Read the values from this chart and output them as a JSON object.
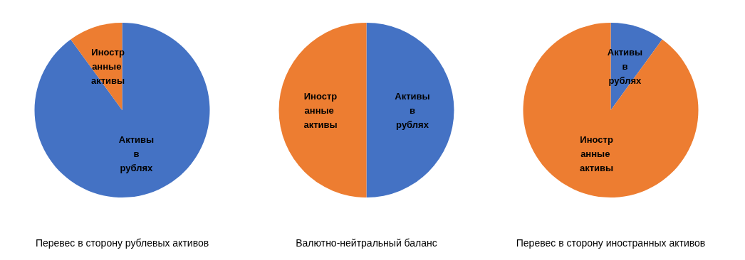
{
  "chart_data": [
    {
      "type": "pie",
      "title": "Перевес в сторону рублевых активов",
      "categories": [
        "Активы в рублях",
        "Иностранные активы"
      ],
      "values": [
        90,
        10
      ],
      "colors": [
        "#4472c4",
        "#ed7d31"
      ]
    },
    {
      "type": "pie",
      "title": "Валютно-нейтральный баланс",
      "categories": [
        "Активы в рублях",
        "Иностранные активы"
      ],
      "values": [
        50,
        50
      ],
      "colors": [
        "#4472c4",
        "#ed7d31"
      ]
    },
    {
      "type": "pie",
      "title": "Перевес в сторону иностранных активов",
      "categories": [
        "Активы в рублях",
        "Иностранные активы"
      ],
      "values": [
        10,
        90
      ],
      "colors": [
        "#4472c4",
        "#ed7d31"
      ]
    }
  ]
}
